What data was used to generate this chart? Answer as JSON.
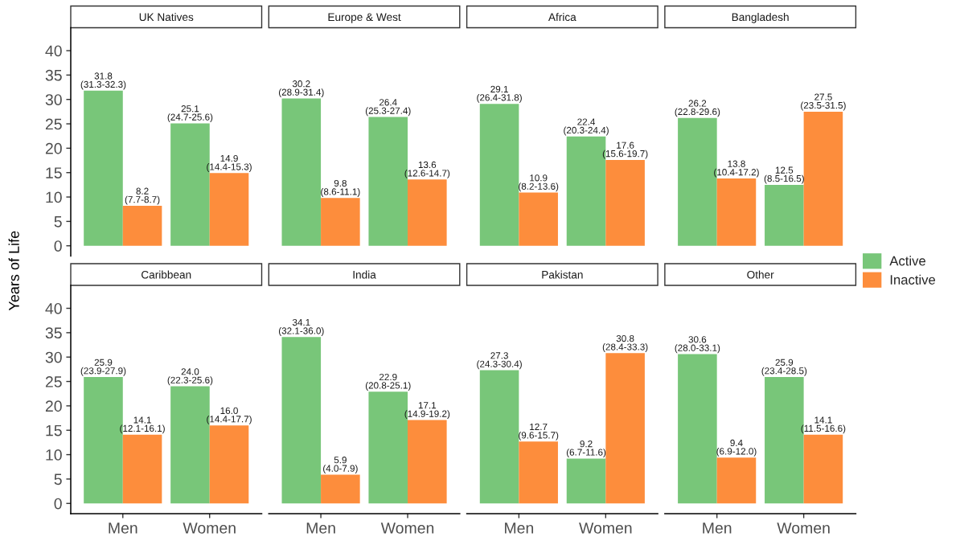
{
  "chart_data": [
    {
      "type": "bar",
      "title": "UK Natives",
      "categories": [
        "Men",
        "Women"
      ],
      "series": [
        {
          "name": "Active",
          "color": "#78c679",
          "values": [
            31.8,
            25.1
          ],
          "value_labels": [
            "31.8\n(31.3-32.3)",
            "25.1\n(24.7-25.6)"
          ]
        },
        {
          "name": "Inactive",
          "color": "#fd8d3c",
          "values": [
            8.2,
            14.9
          ],
          "value_labels": [
            "8.2\n(7.7-8.7)",
            "14.9\n(14.4-15.3)"
          ]
        }
      ],
      "ylim": [
        -2.1,
        44.7
      ],
      "yticks": [
        0,
        5,
        10,
        15,
        20,
        25,
        30,
        35,
        40
      ],
      "tick_labels": "y",
      "ylabel": "Years of Life",
      "legend": "right"
    },
    {
      "type": "bar",
      "title": "Europe & West",
      "categories": [
        "Men",
        "Women"
      ],
      "series": [
        {
          "name": "Active",
          "color": "#78c679",
          "values": [
            30.2,
            26.4
          ],
          "value_labels": [
            "30.2\n(28.9-31.4)",
            "26.4\n(25.3-27.4)"
          ]
        },
        {
          "name": "Inactive",
          "color": "#fd8d3c",
          "values": [
            9.8,
            13.6
          ],
          "value_labels": [
            "9.8\n(8.6-11.1)",
            "13.6\n(12.6-14.7)"
          ]
        }
      ],
      "tick_labels": false
    },
    {
      "type": "bar",
      "title": "Africa",
      "categories": [
        "Men",
        "Women"
      ],
      "series": [
        {
          "name": "Active",
          "color": "#78c679",
          "values": [
            29.1,
            22.4
          ],
          "value_labels": [
            "29.1\n(26.4-31.8)",
            "22.4\n(20.3-24.4)"
          ]
        },
        {
          "name": "Inactive",
          "color": "#fd8d3c",
          "values": [
            10.9,
            17.6
          ],
          "value_labels": [
            "10.9\n(8.2-13.6)",
            "17.6\n(15.6-19.7)"
          ]
        }
      ],
      "tick_labels": false
    },
    {
      "type": "bar",
      "title": "Bangladesh",
      "categories": [
        "Men",
        "Women"
      ],
      "series": [
        {
          "name": "Active",
          "color": "#78c679",
          "values": [
            26.2,
            12.5
          ],
          "value_labels": [
            "26.2\n(22.8-29.6)",
            "12.5\n(8.5-16.5)"
          ]
        },
        {
          "name": "Inactive",
          "color": "#fd8d3c",
          "values": [
            13.8,
            27.5
          ],
          "value_labels": [
            "13.8\n(10.4-17.2)",
            "27.5\n(23.5-31.5)"
          ]
        }
      ],
      "tick_labels": false
    },
    {
      "type": "bar",
      "title": "Caribbean",
      "categories": [
        "Men",
        "Women"
      ],
      "series": [
        {
          "name": "Active",
          "color": "#78c679",
          "values": [
            25.9,
            24.0
          ],
          "value_labels": [
            "25.9\n(23.9-27.9)",
            "24.0\n(22.3-25.6)"
          ]
        },
        {
          "name": "Inactive",
          "color": "#fd8d3c",
          "values": [
            14.1,
            16.0
          ],
          "value_labels": [
            "14.1\n(12.1-16.1)",
            "16.0\n(14.4-17.7)"
          ]
        }
      ],
      "ylim": [
        -2.1,
        44.7
      ],
      "yticks": [
        0,
        5,
        10,
        15,
        20,
        25,
        30,
        35,
        40
      ]
    },
    {
      "type": "bar",
      "title": "India",
      "categories": [
        "Men",
        "Women"
      ],
      "series": [
        {
          "name": "Active",
          "color": "#78c679",
          "values": [
            34.1,
            22.9
          ],
          "value_labels": [
            "34.1\n(32.1-36.0)",
            "22.9\n(20.8-25.1)"
          ]
        },
        {
          "name": "Inactive",
          "color": "#fd8d3c",
          "values": [
            5.9,
            17.1
          ],
          "value_labels": [
            "5.9\n(4.0-7.9)",
            "17.1\n(14.9-19.2)"
          ]
        }
      ],
      "tick_labels": "x"
    },
    {
      "type": "bar",
      "title": "Pakistan",
      "categories": [
        "Men",
        "Women"
      ],
      "series": [
        {
          "name": "Active",
          "color": "#78c679",
          "values": [
            27.3,
            9.2
          ],
          "value_labels": [
            "27.3\n(24.3-30.4)",
            "9.2\n(6.7-11.6)"
          ]
        },
        {
          "name": "Inactive",
          "color": "#fd8d3c",
          "values": [
            12.7,
            30.8
          ],
          "value_labels": [
            "12.7\n(9.6-15.7)",
            "30.8\n(28.4-33.3)"
          ]
        }
      ],
      "tick_labels": "x"
    },
    {
      "type": "bar",
      "title": "Other",
      "categories": [
        "Men",
        "Women"
      ],
      "series": [
        {
          "name": "Active",
          "color": "#78c679",
          "values": [
            30.6,
            25.9
          ],
          "value_labels": [
            "30.6\n(28.0-33.1)",
            "25.9\n(23.4-28.5)"
          ]
        },
        {
          "name": "Inactive",
          "color": "#fd8d3c",
          "values": [
            9.4,
            14.1
          ],
          "value_labels": [
            "9.4\n(6.9-12.0)",
            "14.1\n(11.5-16.6)"
          ]
        }
      ],
      "tick_labels": "x"
    }
  ]
}
